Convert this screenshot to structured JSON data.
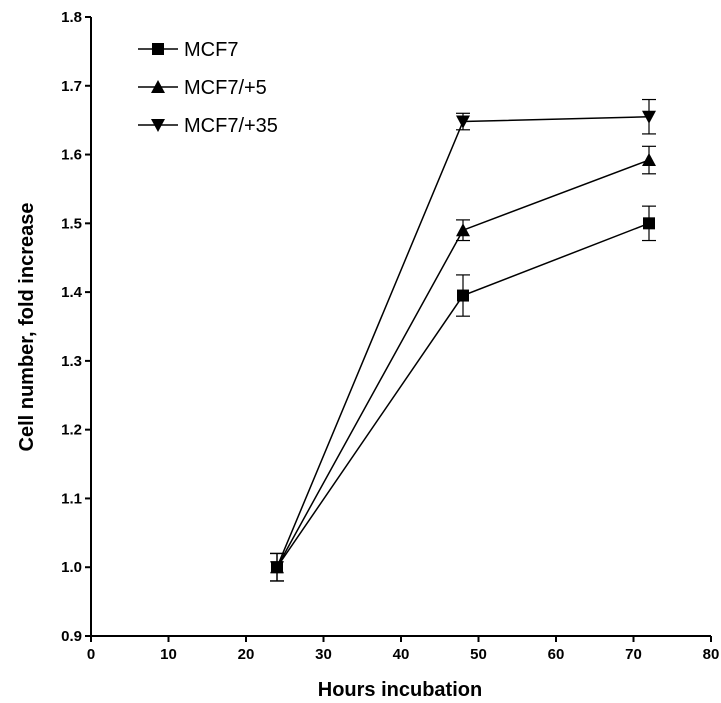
{
  "chart_data": {
    "type": "line",
    "xlabel": "Hours incubation",
    "ylabel": "Cell number, fold increase",
    "xlim": [
      0,
      80
    ],
    "ylim": [
      0.9,
      1.8
    ],
    "x_ticks": [
      0,
      10,
      20,
      30,
      40,
      50,
      60,
      70,
      80
    ],
    "y_ticks": [
      "0.9",
      "1.0",
      "1.1",
      "1.2",
      "1.3",
      "1.4",
      "1.5",
      "1.6",
      "1.7",
      "1.8"
    ],
    "grid": false,
    "legend_position": "top-left",
    "x": [
      24,
      48,
      72
    ],
    "series": [
      {
        "name": "MCF7",
        "marker": "square",
        "values": [
          1.0,
          1.395,
          1.5
        ],
        "errors": [
          0.02,
          0.03,
          0.025
        ]
      },
      {
        "name": "MCF7/+5",
        "marker": "triangle-up",
        "values": [
          1.0,
          1.49,
          1.592
        ],
        "errors": [
          0.02,
          0.015,
          0.02
        ]
      },
      {
        "name": "MCF7/+35",
        "marker": "triangle-down",
        "values": [
          1.0,
          1.648,
          1.655
        ],
        "errors": [
          0.02,
          0.012,
          0.025
        ]
      }
    ],
    "color": "#000000"
  }
}
